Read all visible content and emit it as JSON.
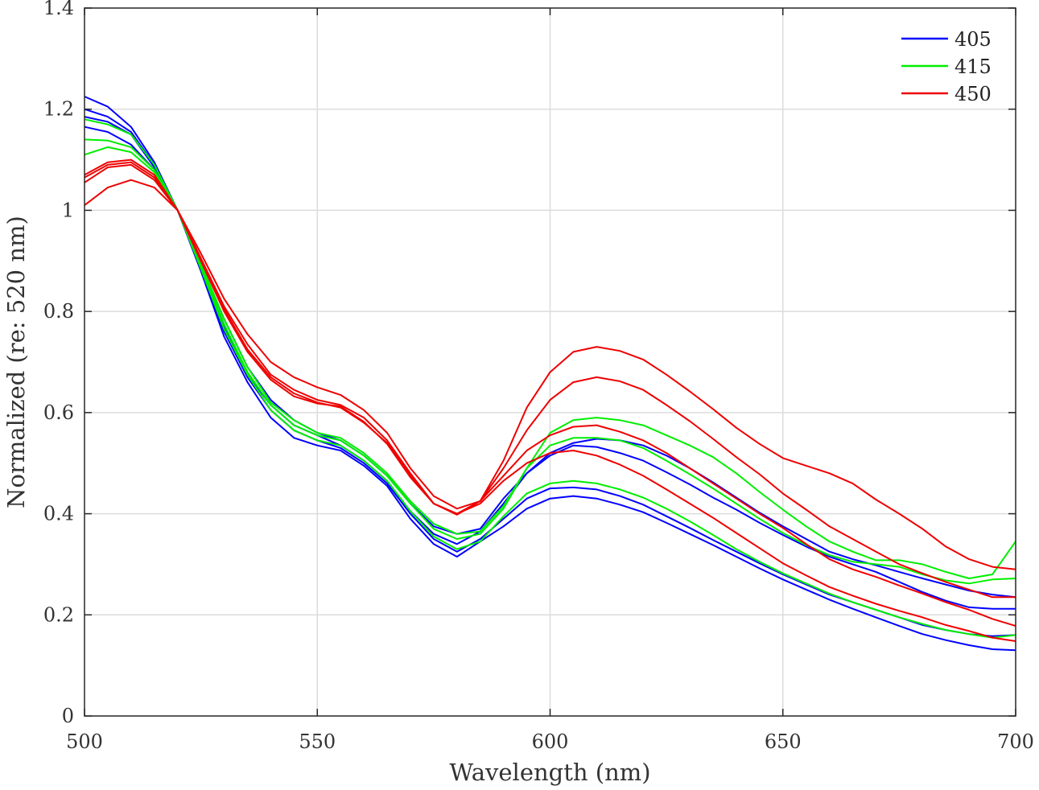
{
  "chart_data": {
    "type": "line",
    "title": "",
    "xlabel": "Wavelength (nm)",
    "ylabel": "Normalized (re: 520 nm)",
    "xlim": [
      500,
      700
    ],
    "ylim": [
      0,
      1.4
    ],
    "xticks": [
      500,
      550,
      600,
      650,
      700
    ],
    "yticks": [
      0,
      0.2,
      0.4,
      0.6,
      0.8,
      1,
      1.2,
      1.4
    ],
    "xtick_labels": [
      "500",
      "550",
      "600",
      "650",
      "700"
    ],
    "ytick_labels": [
      "0",
      "0.2",
      "0.4",
      "0.6",
      "0.8",
      "1",
      "1.2",
      "1.4"
    ],
    "grid": true,
    "legend_position": "top-right",
    "legend": [
      {
        "label": "405",
        "color": "#0000ff"
      },
      {
        "label": "415",
        "color": "#00ee00"
      },
      {
        "label": "450",
        "color": "#ee0000"
      }
    ],
    "x": [
      500,
      505,
      510,
      515,
      520,
      525,
      530,
      535,
      540,
      545,
      550,
      555,
      560,
      565,
      570,
      575,
      580,
      585,
      590,
      595,
      600,
      605,
      610,
      615,
      620,
      625,
      630,
      635,
      640,
      645,
      650,
      655,
      660,
      665,
      670,
      675,
      680,
      685,
      690,
      695,
      700
    ],
    "series": [
      {
        "group": "405",
        "color": "#0000ff",
        "values": [
          1.225,
          1.205,
          1.165,
          1.095,
          1.0,
          0.88,
          0.75,
          0.66,
          0.59,
          0.55,
          0.535,
          0.525,
          0.495,
          0.455,
          0.39,
          0.34,
          0.315,
          0.345,
          0.375,
          0.41,
          0.43,
          0.435,
          0.43,
          0.418,
          0.403,
          0.382,
          0.36,
          0.338,
          0.315,
          0.292,
          0.27,
          0.25,
          0.23,
          0.212,
          0.195,
          0.178,
          0.162,
          0.15,
          0.14,
          0.132,
          0.13
        ]
      },
      {
        "group": "405",
        "color": "#0000ff",
        "values": [
          1.2,
          1.185,
          1.155,
          1.09,
          1.0,
          0.885,
          0.76,
          0.67,
          0.605,
          0.565,
          0.545,
          0.53,
          0.5,
          0.46,
          0.4,
          0.35,
          0.325,
          0.35,
          0.39,
          0.43,
          0.45,
          0.452,
          0.448,
          0.435,
          0.418,
          0.395,
          0.372,
          0.348,
          0.325,
          0.302,
          0.28,
          0.26,
          0.24,
          0.225,
          0.21,
          0.195,
          0.18,
          0.17,
          0.162,
          0.158,
          0.16
        ]
      },
      {
        "group": "405",
        "color": "#0000ff",
        "values": [
          1.185,
          1.175,
          1.15,
          1.085,
          1.0,
          0.89,
          0.77,
          0.675,
          0.615,
          0.575,
          0.555,
          0.535,
          0.505,
          0.465,
          0.405,
          0.36,
          0.34,
          0.365,
          0.42,
          0.48,
          0.52,
          0.54,
          0.548,
          0.545,
          0.535,
          0.515,
          0.49,
          0.462,
          0.432,
          0.402,
          0.375,
          0.35,
          0.325,
          0.31,
          0.298,
          0.285,
          0.272,
          0.26,
          0.248,
          0.24,
          0.235
        ]
      },
      {
        "group": "405",
        "color": "#0000ff",
        "values": [
          1.165,
          1.155,
          1.13,
          1.08,
          1.0,
          0.895,
          0.785,
          0.69,
          0.625,
          0.585,
          0.56,
          0.545,
          0.515,
          0.475,
          0.42,
          0.375,
          0.36,
          0.37,
          0.43,
          0.48,
          0.515,
          0.535,
          0.532,
          0.52,
          0.505,
          0.482,
          0.458,
          0.432,
          0.408,
          0.382,
          0.358,
          0.335,
          0.315,
          0.3,
          0.285,
          0.265,
          0.245,
          0.228,
          0.215,
          0.212,
          0.212
        ]
      },
      {
        "group": "415",
        "color": "#00ee00",
        "values": [
          1.18,
          1.17,
          1.15,
          1.09,
          1.0,
          0.885,
          0.765,
          0.675,
          0.605,
          0.565,
          0.545,
          0.535,
          0.505,
          0.465,
          0.405,
          0.355,
          0.33,
          0.345,
          0.395,
          0.44,
          0.46,
          0.465,
          0.46,
          0.448,
          0.432,
          0.41,
          0.385,
          0.358,
          0.33,
          0.305,
          0.282,
          0.262,
          0.242,
          0.225,
          0.21,
          0.195,
          0.182,
          0.17,
          0.162,
          0.155,
          0.16
        ]
      },
      {
        "group": "415",
        "color": "#00ee00",
        "values": [
          1.14,
          1.138,
          1.125,
          1.08,
          1.0,
          0.89,
          0.775,
          0.68,
          0.615,
          0.575,
          0.555,
          0.545,
          0.515,
          0.475,
          0.42,
          0.37,
          0.35,
          0.36,
          0.41,
          0.49,
          0.535,
          0.55,
          0.55,
          0.545,
          0.53,
          0.505,
          0.478,
          0.45,
          0.42,
          0.39,
          0.362,
          0.338,
          0.318,
          0.305,
          0.3,
          0.295,
          0.28,
          0.268,
          0.262,
          0.27,
          0.272
        ]
      },
      {
        "group": "415",
        "color": "#00ee00",
        "values": [
          1.11,
          1.125,
          1.115,
          1.075,
          1.0,
          0.895,
          0.785,
          0.69,
          0.62,
          0.585,
          0.56,
          0.55,
          0.52,
          0.48,
          0.425,
          0.38,
          0.36,
          0.365,
          0.415,
          0.49,
          0.56,
          0.585,
          0.59,
          0.585,
          0.575,
          0.555,
          0.535,
          0.512,
          0.48,
          0.443,
          0.408,
          0.375,
          0.345,
          0.325,
          0.308,
          0.308,
          0.3,
          0.285,
          0.272,
          0.28,
          0.345
        ]
      },
      {
        "group": "450",
        "color": "#ee0000",
        "values": [
          1.01,
          1.045,
          1.06,
          1.045,
          1.0,
          0.915,
          0.825,
          0.755,
          0.7,
          0.67,
          0.65,
          0.635,
          0.605,
          0.56,
          0.49,
          0.435,
          0.41,
          0.425,
          0.505,
          0.61,
          0.68,
          0.72,
          0.73,
          0.722,
          0.705,
          0.675,
          0.642,
          0.607,
          0.57,
          0.538,
          0.51,
          0.495,
          0.48,
          0.46,
          0.428,
          0.4,
          0.37,
          0.335,
          0.31,
          0.295,
          0.29
        ]
      },
      {
        "group": "450",
        "color": "#ee0000",
        "values": [
          1.055,
          1.085,
          1.09,
          1.06,
          1.0,
          0.905,
          0.81,
          0.735,
          0.675,
          0.645,
          0.625,
          0.615,
          0.59,
          0.545,
          0.48,
          0.42,
          0.4,
          0.425,
          0.49,
          0.565,
          0.625,
          0.66,
          0.67,
          0.662,
          0.645,
          0.615,
          0.583,
          0.548,
          0.512,
          0.478,
          0.44,
          0.408,
          0.375,
          0.35,
          0.325,
          0.3,
          0.282,
          0.265,
          0.25,
          0.235,
          0.235
        ]
      },
      {
        "group": "450",
        "color": "#ee0000",
        "values": [
          1.065,
          1.09,
          1.095,
          1.065,
          1.0,
          0.905,
          0.805,
          0.725,
          0.67,
          0.638,
          0.62,
          0.61,
          0.58,
          0.54,
          0.475,
          0.42,
          0.398,
          0.425,
          0.475,
          0.525,
          0.555,
          0.572,
          0.575,
          0.562,
          0.545,
          0.52,
          0.49,
          0.46,
          0.43,
          0.4,
          0.372,
          0.34,
          0.31,
          0.29,
          0.275,
          0.258,
          0.242,
          0.225,
          0.21,
          0.192,
          0.178
        ]
      },
      {
        "group": "450",
        "color": "#ee0000",
        "values": [
          1.07,
          1.095,
          1.1,
          1.07,
          1.0,
          0.9,
          0.8,
          0.72,
          0.665,
          0.632,
          0.618,
          0.612,
          0.582,
          0.538,
          0.472,
          0.42,
          0.4,
          0.42,
          0.465,
          0.5,
          0.52,
          0.525,
          0.515,
          0.497,
          0.475,
          0.448,
          0.42,
          0.392,
          0.362,
          0.332,
          0.302,
          0.278,
          0.255,
          0.238,
          0.222,
          0.208,
          0.195,
          0.18,
          0.168,
          0.155,
          0.148
        ]
      }
    ]
  }
}
